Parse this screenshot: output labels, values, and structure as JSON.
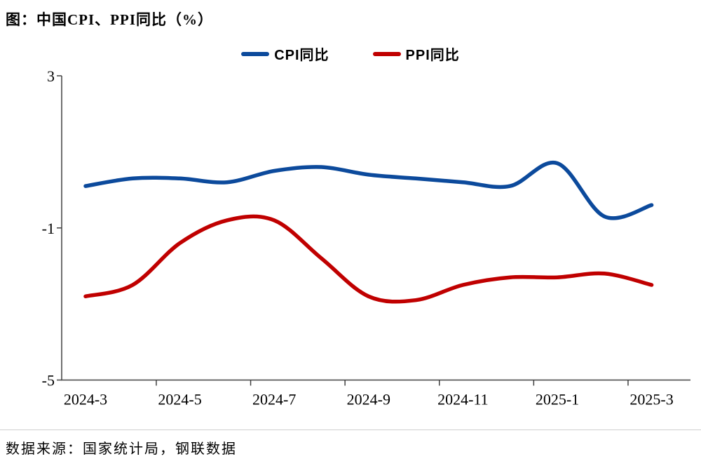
{
  "page": {
    "title": "图：中国CPI、PPI同比（%）",
    "source": "数据来源：国家统计局，钢联数据"
  },
  "legend": [
    {
      "label": "CPI同比",
      "color": "#0c4a9c"
    },
    {
      "label": "PPI同比",
      "color": "#c00000"
    }
  ],
  "colors": {
    "cpi_line": "#0c4a9c",
    "ppi_line": "#c00000",
    "axis": "#404040",
    "tick_text": "#000000",
    "divider": "#cfcfcf"
  },
  "chart_data": {
    "type": "line",
    "title": "图：中国CPI、PPI同比（%）",
    "xlabel": "",
    "ylabel": "",
    "categories": [
      "2024-3",
      "2024-4",
      "2024-5",
      "2024-6",
      "2024-7",
      "2024-8",
      "2024-9",
      "2024-10",
      "2024-11",
      "2024-12",
      "2025-1",
      "2025-2",
      "2025-3"
    ],
    "x_tick_labels": [
      "2024-3",
      "2024-5",
      "2024-7",
      "2024-9",
      "2024-11",
      "2025-1",
      "2025-3"
    ],
    "y_ticks": [
      3,
      -1,
      -5
    ],
    "ylim": [
      -5,
      3
    ],
    "grid": false,
    "smooth": true,
    "legend_position": "top",
    "series": [
      {
        "name": "CPI同比",
        "color": "#0c4a9c",
        "values": [
          0.1,
          0.3,
          0.3,
          0.2,
          0.5,
          0.6,
          0.4,
          0.3,
          0.2,
          0.1,
          0.7,
          -0.7,
          -0.4
        ]
      },
      {
        "name": "PPI同比",
        "color": "#c00000",
        "values": [
          -2.8,
          -2.5,
          -1.4,
          -0.8,
          -0.8,
          -1.8,
          -2.8,
          -2.9,
          -2.5,
          -2.3,
          -2.3,
          -2.2,
          -2.5
        ]
      }
    ]
  }
}
